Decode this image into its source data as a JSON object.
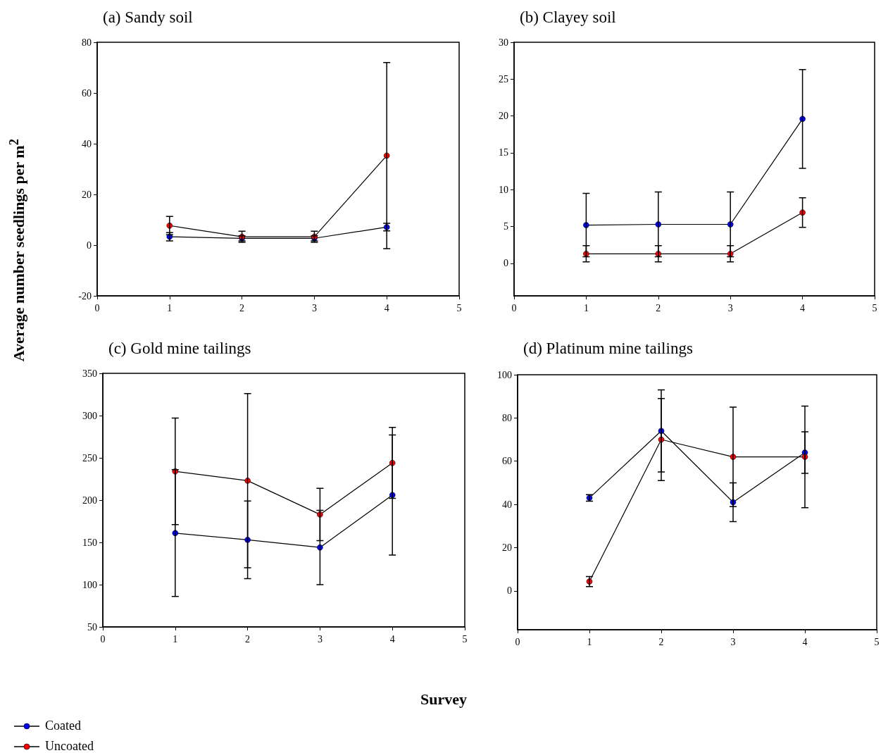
{
  "chart_data": [
    {
      "type": "line",
      "title": "(a) Sandy soil",
      "xlabel": "Survey",
      "ylabel": "Average number seedlings per m$^{2}$",
      "x": [
        1,
        2,
        3,
        4
      ],
      "xlim": [
        0,
        5
      ],
      "xticks": [
        0,
        1,
        2,
        3,
        4,
        5
      ],
      "ylim": [
        -20,
        80
      ],
      "yticks": [
        -20,
        0,
        20,
        40,
        60,
        80
      ],
      "grid": false,
      "legend": "bottom left",
      "marker": "circle",
      "line_style": "solid",
      "series": [
        {
          "name": "Coated",
          "color": "#0000ff",
          "values": [
            3.3,
            2.7,
            2.7,
            7.1
          ],
          "errors": [
            1.6,
            1,
            1,
            1.5
          ]
        },
        {
          "name": "Uncoated",
          "color": "#ff0000",
          "values": [
            7.7,
            3.3,
            3.3,
            35.3
          ],
          "errors": [
            3.6,
            2.2,
            2.2,
            36.7
          ]
        }
      ]
    },
    {
      "type": "line",
      "title": "(b) Clayey soil",
      "x": [
        1,
        2,
        3,
        4
      ],
      "xlim": [
        0,
        5
      ],
      "xticks": [
        0,
        1,
        2,
        3,
        4,
        5
      ],
      "ylim": [
        -4.4,
        30
      ],
      "yticks": [
        0,
        5,
        10,
        15,
        20,
        25,
        30
      ],
      "grid": false,
      "legend": false,
      "marker": "circle",
      "line_style": "solid",
      "series": [
        {
          "color": "#0000ff",
          "values": [
            5.2,
            5.3,
            5.3,
            19.6
          ],
          "errors": [
            4.3,
            4.4,
            4.4,
            6.7
          ]
        },
        {
          "color": "#ff0000",
          "values": [
            1.3,
            1.3,
            1.3,
            6.9
          ],
          "errors": [
            1.1,
            1.1,
            1.1,
            2
          ]
        }
      ]
    },
    {
      "type": "line",
      "title": "(c) Gold mine tailings",
      "x": [
        1,
        2,
        3,
        4
      ],
      "xlim": [
        0,
        5
      ],
      "xticks": [
        0,
        1,
        2,
        3,
        4,
        5
      ],
      "ylim": [
        50,
        350
      ],
      "yticks": [
        50,
        100,
        150,
        200,
        250,
        300,
        350
      ],
      "grid": false,
      "legend": false,
      "marker": "circle",
      "line_style": "solid",
      "series": [
        {
          "color": "#0000ff",
          "values": [
            161,
            153,
            144,
            206
          ],
          "errors": [
            75,
            46,
            44,
            71
          ]
        },
        {
          "color": "#ff0000",
          "values": [
            234,
            223,
            183,
            244
          ],
          "errors": [
            63,
            103,
            31,
            42
          ]
        }
      ]
    },
    {
      "type": "line",
      "title": "(d) Platinum mine tailings",
      "x": [
        1,
        2,
        3,
        4
      ],
      "xlim": [
        0,
        5
      ],
      "xticks": [
        0,
        1,
        2,
        3,
        4,
        5
      ],
      "ylim": [
        -18,
        100
      ],
      "yticks": [
        0,
        20,
        40,
        60,
        80,
        100
      ],
      "grid": false,
      "legend": false,
      "marker": "circle",
      "line_style": "solid",
      "series": [
        {
          "color": "#0000ff",
          "values": [
            43,
            74,
            41,
            64
          ],
          "errors": [
            1.5,
            19,
            9,
            9.6
          ]
        },
        {
          "color": "#ff0000",
          "values": [
            4.3,
            70,
            62,
            62
          ],
          "errors": [
            2.3,
            19,
            23,
            23.5
          ]
        }
      ]
    }
  ]
}
